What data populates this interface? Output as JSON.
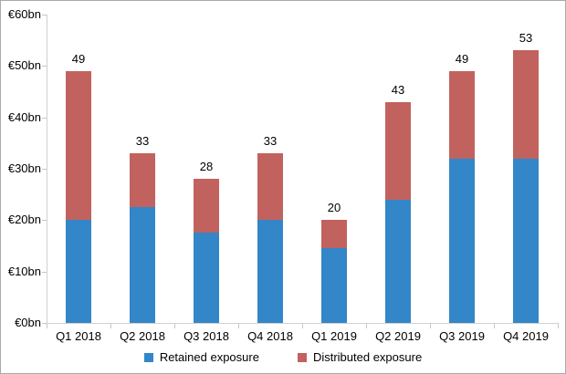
{
  "chart_data": {
    "type": "bar",
    "stacked": true,
    "title": "",
    "xlabel": "",
    "ylabel": "",
    "categories": [
      "Q1 2018",
      "Q2 2018",
      "Q3 2018",
      "Q4 2018",
      "Q1 2019",
      "Q2 2019",
      "Q3 2019",
      "Q4 2019"
    ],
    "series": [
      {
        "name": "Retained exposure",
        "color": "#3386c7",
        "values": [
          20,
          22.5,
          17.5,
          20,
          14.5,
          24,
          32,
          32
        ]
      },
      {
        "name": "Distributed exposure",
        "color": "#c2625e",
        "values": [
          29,
          10.5,
          10.5,
          13,
          5.5,
          19,
          17,
          21
        ]
      }
    ],
    "total_labels": [
      "49",
      "33",
      "28",
      "33",
      "20",
      "43",
      "49",
      "53"
    ],
    "ylim": [
      0,
      60
    ],
    "ytick_interval": 10,
    "ytick_labels": [
      "€0bn",
      "€10bn",
      "€20bn",
      "€30bn",
      "€40bn",
      "€50bn",
      "€60bn"
    ],
    "grid": false,
    "legend_position": "bottom",
    "axis_color": "#d0d0d0",
    "tick_color": "#c6c6c6",
    "text_color": "#000000",
    "background_color": "#ffffff"
  }
}
